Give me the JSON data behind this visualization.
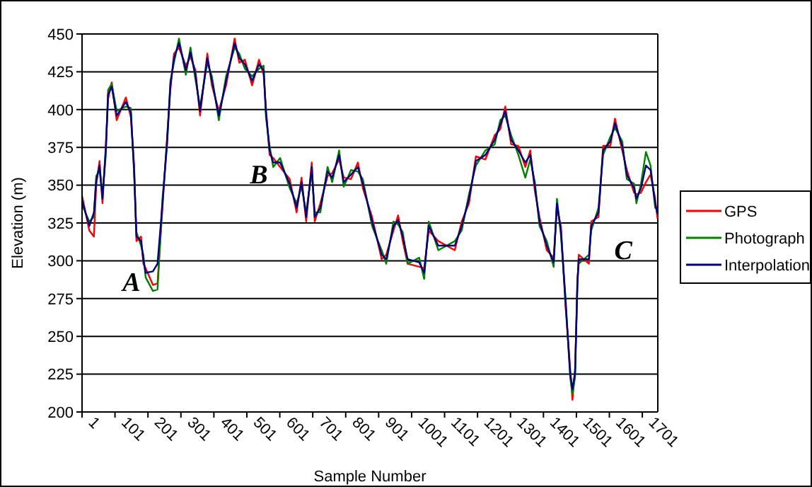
{
  "chart_data": {
    "type": "line",
    "xlabel": "Sample Number",
    "ylabel": "Elevation (m)",
    "x": [
      1,
      23,
      37,
      44,
      54,
      63,
      73,
      80,
      91,
      106,
      134,
      149,
      159,
      166,
      180,
      187,
      194,
      216,
      230,
      245,
      259,
      269,
      280,
      295,
      316,
      330,
      345,
      359,
      381,
      395,
      416,
      438,
      464,
      478,
      495,
      517,
      538,
      552,
      559,
      570,
      581,
      602,
      631,
      652,
      667,
      681,
      698,
      707,
      724,
      746,
      760,
      781,
      795,
      817,
      838,
      853,
      881,
      910,
      924,
      946,
      960,
      974,
      989,
      1024,
      1039,
      1053,
      1082,
      1132,
      1153,
      1175,
      1196,
      1225,
      1253,
      1270,
      1285,
      1303,
      1325,
      1346,
      1361,
      1375,
      1389,
      1411,
      1432,
      1442,
      1454,
      1468,
      1482,
      1489,
      1497,
      1504,
      1508,
      1539,
      1546,
      1568,
      1582,
      1604,
      1618,
      1640,
      1654,
      1676,
      1683,
      1697,
      1712,
      1726,
      1740,
      1747
    ],
    "xlim": [
      1,
      1748
    ],
    "xticks": [
      1,
      101,
      201,
      301,
      401,
      501,
      601,
      701,
      801,
      901,
      1001,
      1101,
      1201,
      1301,
      1401,
      1501,
      1601,
      1701
    ],
    "ylim": [
      200,
      450
    ],
    "yticks": [
      200,
      225,
      250,
      275,
      300,
      325,
      350,
      375,
      400,
      425,
      450
    ],
    "grid": "y",
    "legend": "right",
    "line_style": "solid",
    "marker": "none",
    "series": [
      {
        "name": "GPS",
        "color": "#ff0000",
        "values": [
          343,
          320,
          316,
          350,
          366,
          338,
          376,
          407,
          418,
          393,
          408,
          395,
          363,
          313,
          316,
          298,
          295,
          284,
          285,
          335,
          382,
          413,
          437,
          441,
          429,
          435,
          426,
          396,
          437,
          416,
          399,
          416,
          447,
          431,
          433,
          416,
          433,
          423,
          401,
          370,
          368,
          362,
          354,
          332,
          355,
          326,
          365,
          326,
          338,
          356,
          358,
          367,
          355,
          354,
          365,
          348,
          329,
          301,
          304,
          320,
          330,
          313,
          298,
          296,
          295,
          320,
          313,
          307,
          326,
          338,
          369,
          367,
          383,
          387,
          402,
          377,
          376,
          362,
          373,
          346,
          329,
          307,
          302,
          335,
          323,
          270,
          229,
          208,
          229,
          282,
          304,
          298,
          326,
          329,
          376,
          376,
          394,
          373,
          360,
          345,
          344,
          345,
          352,
          357,
          341,
          328
        ]
      },
      {
        "name": "Photograph",
        "color": "#008000",
        "values": [
          337,
          326,
          329,
          356,
          360,
          344,
          370,
          413,
          417,
          399,
          402,
          401,
          357,
          319,
          310,
          304,
          289,
          280,
          281,
          341,
          376,
          419,
          431,
          447,
          423,
          441,
          420,
          402,
          431,
          422,
          393,
          422,
          441,
          437,
          427,
          422,
          427,
          429,
          395,
          376,
          362,
          368,
          348,
          338,
          349,
          332,
          359,
          332,
          332,
          362,
          352,
          373,
          349,
          360,
          359,
          354,
          323,
          307,
          298,
          326,
          324,
          319,
          298,
          302,
          288,
          326,
          307,
          313,
          320,
          344,
          363,
          373,
          377,
          393,
          396,
          383,
          370,
          355,
          367,
          352,
          323,
          313,
          296,
          341,
          317,
          276,
          223,
          212,
          223,
          288,
          298,
          304,
          320,
          335,
          370,
          382,
          388,
          379,
          354,
          351,
          338,
          351,
          372,
          363,
          335,
          334
        ]
      },
      {
        "name": "Interpolation",
        "color": "#000080",
        "values": [
          340,
          323,
          332,
          353,
          363,
          341,
          373,
          410,
          415,
          396,
          405,
          398,
          360,
          316,
          313,
          301,
          292,
          293,
          298,
          338,
          379,
          416,
          434,
          444,
          426,
          438,
          423,
          399,
          434,
          419,
          396,
          419,
          444,
          434,
          430,
          419,
          430,
          426,
          398,
          373,
          365,
          365,
          351,
          335,
          352,
          329,
          362,
          329,
          335,
          359,
          355,
          370,
          352,
          357,
          362,
          351,
          326,
          304,
          301,
          323,
          327,
          316,
          301,
          299,
          292,
          323,
          310,
          310,
          323,
          341,
          366,
          370,
          380,
          390,
          399,
          380,
          373,
          365,
          370,
          349,
          326,
          310,
          299,
          338,
          320,
          273,
          226,
          215,
          226,
          285,
          301,
          301,
          323,
          332,
          373,
          379,
          391,
          376,
          357,
          348,
          341,
          348,
          363,
          360,
          338,
          331
        ]
      }
    ],
    "annotations": [
      "A",
      "B",
      "C"
    ]
  }
}
